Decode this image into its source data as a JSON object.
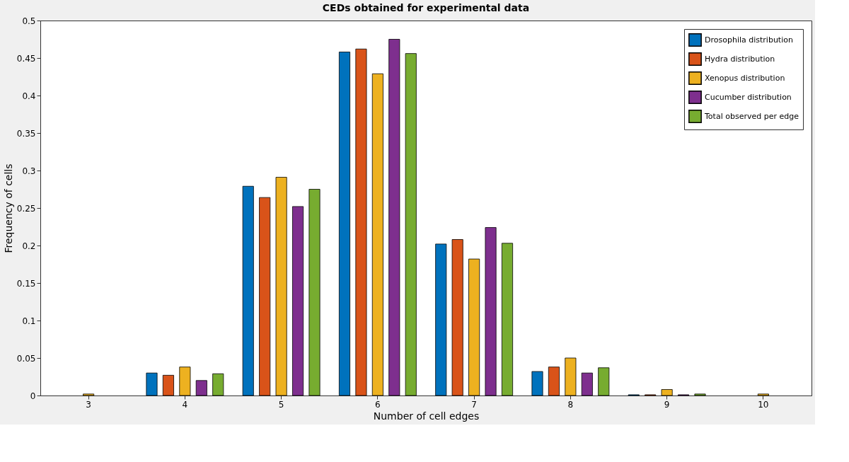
{
  "chart_data": {
    "type": "bar",
    "title": "CEDs obtained for experimental data",
    "xlabel": "Number of cell edges",
    "ylabel": "Frequency of cells",
    "categories": [
      "3",
      "4",
      "5",
      "6",
      "7",
      "8",
      "9",
      "10"
    ],
    "series": [
      {
        "name": "Drosophila distribution",
        "color": "#0072bd",
        "values": [
          null,
          0.03,
          0.279,
          0.458,
          0.202,
          0.032,
          0.001,
          null
        ]
      },
      {
        "name": "Hydra distribution",
        "color": "#d95319",
        "values": [
          null,
          0.027,
          0.264,
          0.462,
          0.208,
          0.038,
          0.001,
          null
        ]
      },
      {
        "name": "Xenopus distribution",
        "color": "#edb120",
        "values": [
          0.002,
          0.038,
          0.291,
          0.429,
          0.182,
          0.05,
          0.008,
          0.002
        ]
      },
      {
        "name": "Cucumber distribution",
        "color": "#7e2f8e",
        "values": [
          null,
          0.02,
          0.252,
          0.475,
          0.224,
          0.03,
          0.001,
          null
        ]
      },
      {
        "name": "Total observed per edge",
        "color": "#77ac30",
        "values": [
          null,
          0.029,
          0.275,
          0.456,
          0.203,
          0.037,
          0.002,
          null
        ]
      }
    ],
    "ylim": [
      0,
      0.5
    ],
    "yticks": [
      0,
      0.05,
      0.1,
      0.15,
      0.2,
      0.25,
      0.3,
      0.35,
      0.4,
      0.45,
      0.5
    ],
    "grid": false,
    "legend": "top right"
  }
}
